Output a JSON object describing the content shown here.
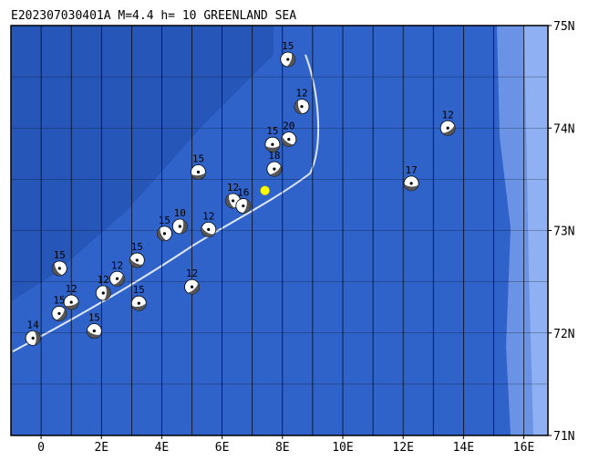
{
  "chart_data": {
    "type": "map",
    "title": "E202307030401A M=4.4 h= 10 GREENLAND SEA",
    "xlim": [
      -1,
      16.8
    ],
    "ylim": [
      71,
      75
    ],
    "xticks": [
      0,
      {
        "value": 2,
        "label": "2E"
      },
      {
        "value": 4,
        "label": "4E"
      },
      {
        "value": 6,
        "label": "6E"
      },
      {
        "value": 8,
        "label": "8E"
      },
      {
        "value": 10,
        "label": "10E"
      },
      {
        "value": 12,
        "label": "12E"
      },
      {
        "value": 14,
        "label": "14E"
      },
      {
        "value": 16,
        "label": "16E"
      }
    ],
    "yticks": [
      {
        "value": 71,
        "label": "71N"
      },
      {
        "value": 72,
        "label": "72N"
      },
      {
        "value": 73,
        "label": "73N"
      },
      {
        "value": 74,
        "label": "74N"
      },
      {
        "value": 75,
        "label": "75N"
      }
    ],
    "lon_grid": [
      0,
      1,
      2,
      3,
      4,
      5,
      6,
      7,
      8,
      9,
      10,
      11,
      12,
      13,
      14,
      15,
      16
    ],
    "lat_grid": [
      71.5,
      72,
      72.5,
      73,
      73.5,
      74,
      74.5
    ],
    "main_event": {
      "lon": 7.42,
      "lat": 73.39,
      "color": "#ffff00"
    },
    "events": [
      {
        "lon": -0.27,
        "lat": 71.95,
        "label": "14"
      },
      {
        "lon": 0.6,
        "lat": 72.19,
        "label": "15"
      },
      {
        "lon": 1.0,
        "lat": 72.3,
        "label": "12"
      },
      {
        "lon": 1.76,
        "lat": 72.02,
        "label": "15"
      },
      {
        "lon": 0.61,
        "lat": 72.63,
        "label": "15"
      },
      {
        "lon": 2.06,
        "lat": 72.39,
        "label": "12"
      },
      {
        "lon": 2.52,
        "lat": 72.53,
        "label": "12"
      },
      {
        "lon": 3.24,
        "lat": 72.29,
        "label": "15"
      },
      {
        "lon": 3.18,
        "lat": 72.71,
        "label": "15"
      },
      {
        "lon": 4.09,
        "lat": 72.97,
        "label": "15"
      },
      {
        "lon": 4.6,
        "lat": 73.04,
        "label": "10"
      },
      {
        "lon": 5.0,
        "lat": 72.45,
        "label": "12"
      },
      {
        "lon": 5.21,
        "lat": 73.57,
        "label": "15"
      },
      {
        "lon": 5.55,
        "lat": 73.01,
        "label": "12"
      },
      {
        "lon": 6.36,
        "lat": 73.29,
        "label": "12"
      },
      {
        "lon": 6.7,
        "lat": 73.24,
        "label": "16"
      },
      {
        "lon": 7.73,
        "lat": 73.6,
        "label": "18"
      },
      {
        "lon": 7.67,
        "lat": 73.84,
        "label": "15"
      },
      {
        "lon": 8.21,
        "lat": 73.89,
        "label": "20"
      },
      {
        "lon": 8.64,
        "lat": 74.21,
        "label": "12"
      },
      {
        "lon": 8.18,
        "lat": 74.67,
        "label": "15"
      },
      {
        "lon": 13.48,
        "lat": 74.0,
        "label": "12"
      },
      {
        "lon": 12.27,
        "lat": 73.46,
        "label": "17"
      }
    ]
  }
}
